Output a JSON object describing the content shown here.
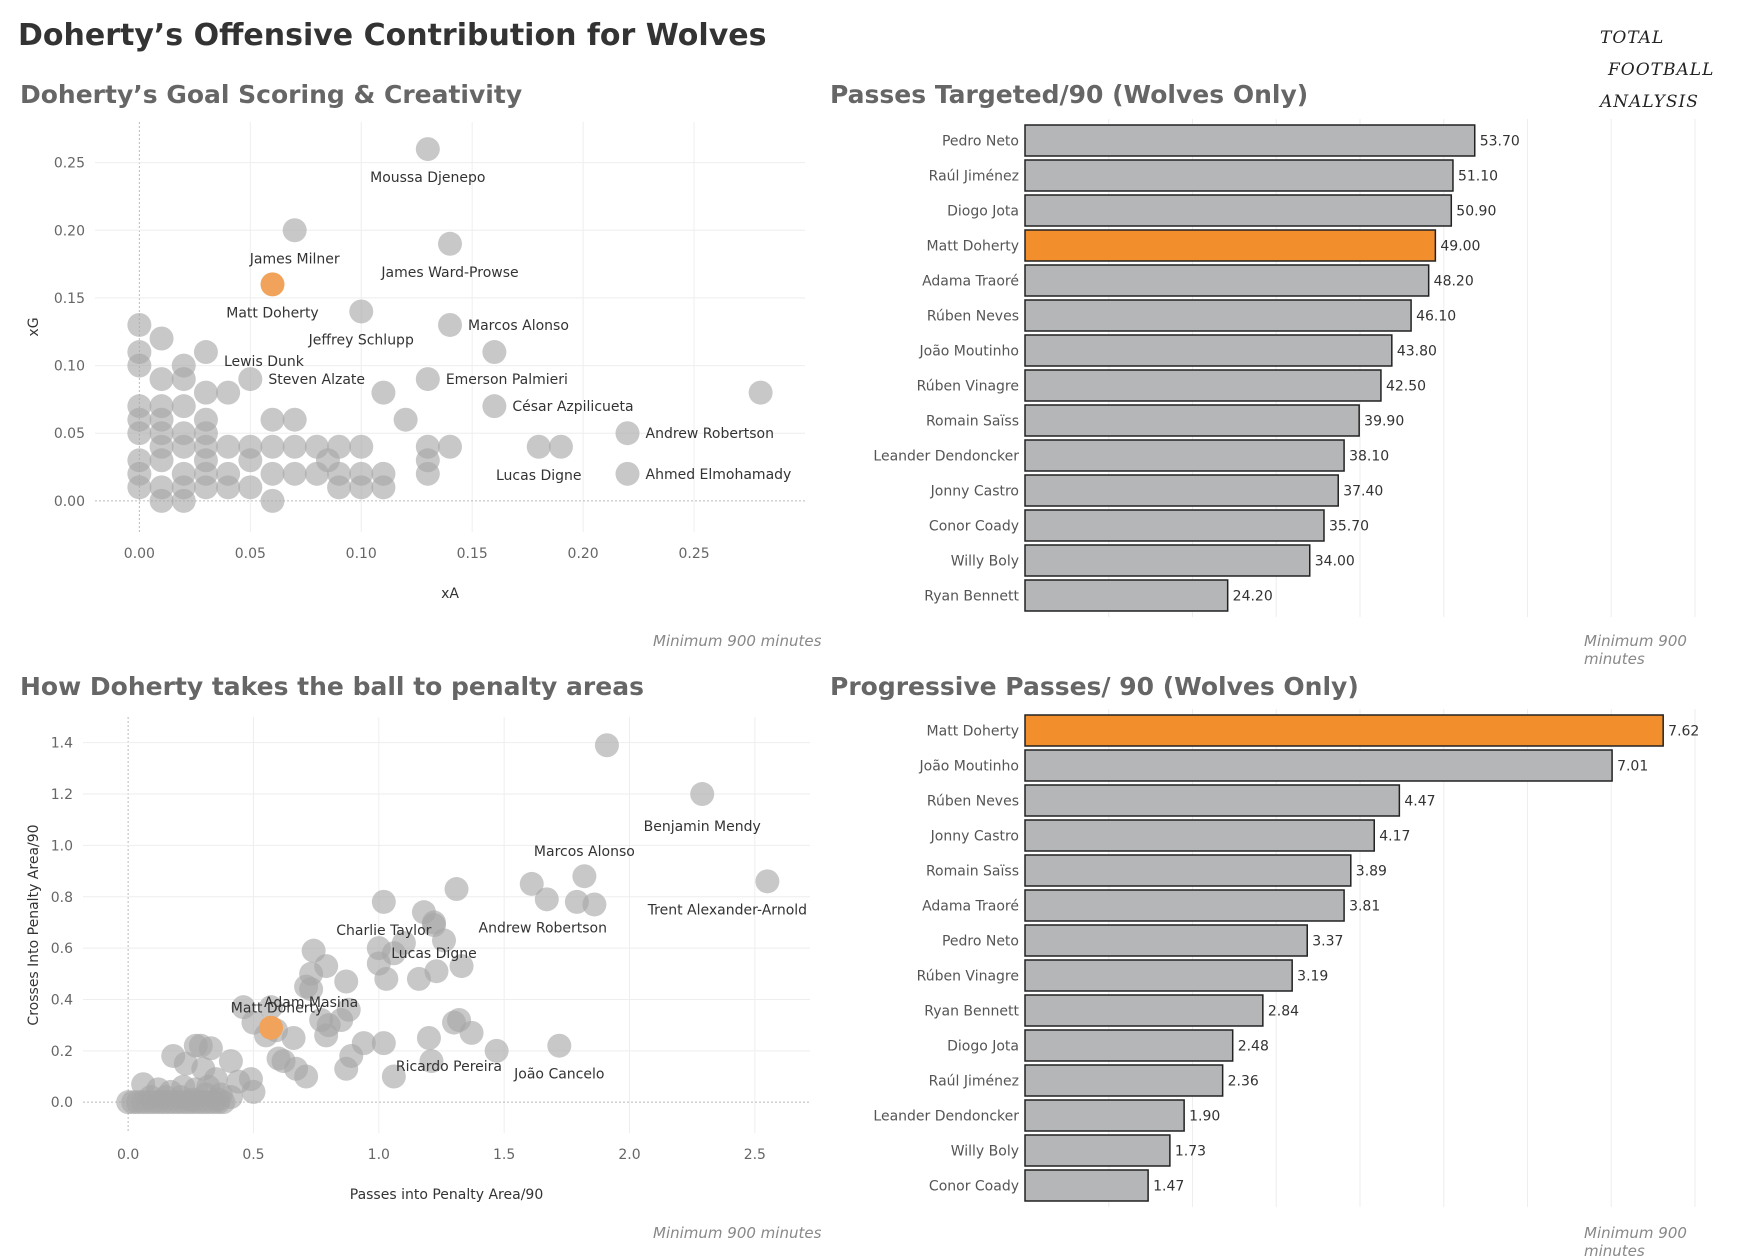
{
  "header": {
    "title": "Doherty’s Offensive Contribution for Wolves"
  },
  "logo": {
    "line1": "TOTAL",
    "line2": "FOOTBALL",
    "line3": "ANALYSIS"
  },
  "colors": {
    "highlight": "#f28e2b",
    "bar": "#b4b6b7",
    "point": "#a6a6a6",
    "highlight_point": "#f1a35b"
  },
  "panels": {
    "top_left": {
      "title": "Doherty’s Goal Scoring & Creativity",
      "footnote": "Minimum 900 minutes"
    },
    "top_right": {
      "title": "Passes Targeted/90 (Wolves Only)",
      "footnote": "Minimum 900 minutes"
    },
    "bottom_left": {
      "title": "How Doherty takes the ball to penalty areas",
      "footnote": "Minimum 900 minutes"
    },
    "bottom_right": {
      "title": "Progressive Passes/ 90 (Wolves Only)",
      "footnote": "Minimum 900 minutes"
    }
  },
  "chart_data": [
    {
      "id": "xg_xa",
      "type": "scatter",
      "title": "Doherty’s Goal Scoring & Creativity",
      "xlabel": "xA",
      "ylabel": "xG",
      "xlim": [
        -0.02,
        0.3
      ],
      "ylim": [
        -0.023,
        0.28
      ],
      "xticks": [
        0.0,
        0.05,
        0.1,
        0.15,
        0.2,
        0.25
      ],
      "yticks": [
        0.0,
        0.05,
        0.1,
        0.15,
        0.2,
        0.25
      ],
      "xtick_labels": [
        "0.00",
        "0.05",
        "0.10",
        "0.15",
        "0.20",
        "0.25"
      ],
      "ytick_labels": [
        "0.00",
        "0.05",
        "0.10",
        "0.15",
        "0.20",
        "0.25"
      ],
      "highlight": {
        "name": "Matt Doherty",
        "x": 0.06,
        "y": 0.16
      },
      "labeled_points": [
        {
          "name": "Moussa Djenepo",
          "x": 0.13,
          "y": 0.26
        },
        {
          "name": "James Milner",
          "x": 0.07,
          "y": 0.2
        },
        {
          "name": "James Ward-Prowse",
          "x": 0.14,
          "y": 0.19
        },
        {
          "name": "Jeffrey Schlupp",
          "x": 0.1,
          "y": 0.14
        },
        {
          "name": "Marcos Alonso",
          "x": 0.14,
          "y": 0.13
        },
        {
          "name": "Lewis Dunk",
          "x": 0.03,
          "y": 0.11
        },
        {
          "name": "Steven Alzate",
          "x": 0.05,
          "y": 0.09
        },
        {
          "name": "Emerson Palmieri",
          "x": 0.13,
          "y": 0.09
        },
        {
          "name": "César Azpilicueta",
          "x": 0.16,
          "y": 0.07
        },
        {
          "name": "Andrew Robertson",
          "x": 0.22,
          "y": 0.05
        },
        {
          "name": "Lucas Digne",
          "x": 0.18,
          "y": 0.04
        },
        {
          "name": "Ahmed Elmohamady",
          "x": 0.22,
          "y": 0.02
        }
      ],
      "other_points": [
        [
          0.16,
          0.11
        ],
        [
          0.28,
          0.08
        ],
        [
          0.19,
          0.04
        ],
        [
          0.11,
          0.08
        ],
        [
          0.12,
          0.06
        ],
        [
          0.13,
          0.04
        ],
        [
          0.13,
          0.03
        ],
        [
          0.13,
          0.02
        ],
        [
          0.14,
          0.04
        ],
        [
          0,
          0.13
        ],
        [
          0,
          0.11
        ],
        [
          0,
          0.1
        ],
        [
          0,
          0.07
        ],
        [
          0,
          0.06
        ],
        [
          0,
          0.05
        ],
        [
          0,
          0.03
        ],
        [
          0,
          0.02
        ],
        [
          0,
          0.01
        ],
        [
          0.01,
          0.12
        ],
        [
          0.01,
          0.09
        ],
        [
          0.01,
          0.07
        ],
        [
          0.01,
          0.06
        ],
        [
          0.01,
          0.05
        ],
        [
          0.01,
          0.04
        ],
        [
          0.01,
          0.03
        ],
        [
          0.01,
          0.01
        ],
        [
          0.01,
          0
        ],
        [
          0.02,
          0.1
        ],
        [
          0.02,
          0.09
        ],
        [
          0.02,
          0.07
        ],
        [
          0.02,
          0.05
        ],
        [
          0.02,
          0.04
        ],
        [
          0.02,
          0.02
        ],
        [
          0.02,
          0.01
        ],
        [
          0.02,
          0
        ],
        [
          0.03,
          0.08
        ],
        [
          0.03,
          0.06
        ],
        [
          0.03,
          0.05
        ],
        [
          0.03,
          0.04
        ],
        [
          0.03,
          0.03
        ],
        [
          0.03,
          0.02
        ],
        [
          0.03,
          0.01
        ],
        [
          0.04,
          0.08
        ],
        [
          0.04,
          0.04
        ],
        [
          0.04,
          0.02
        ],
        [
          0.04,
          0.01
        ],
        [
          0.05,
          0.04
        ],
        [
          0.05,
          0.03
        ],
        [
          0.05,
          0.01
        ],
        [
          0.06,
          0.06
        ],
        [
          0.06,
          0.04
        ],
        [
          0.06,
          0.02
        ],
        [
          0.06,
          0
        ],
        [
          0.07,
          0.06
        ],
        [
          0.07,
          0.04
        ],
        [
          0.07,
          0.02
        ],
        [
          0.08,
          0.04
        ],
        [
          0.08,
          0.02
        ],
        [
          0.085,
          0.03
        ],
        [
          0.09,
          0.04
        ],
        [
          0.09,
          0.02
        ],
        [
          0.09,
          0.01
        ],
        [
          0.1,
          0.04
        ],
        [
          0.1,
          0.02
        ],
        [
          0.1,
          0.01
        ],
        [
          0.11,
          0.02
        ],
        [
          0.11,
          0.01
        ]
      ]
    },
    {
      "id": "passes_targeted",
      "type": "bar",
      "orientation": "horizontal",
      "title": "Passes Targeted/90 (Wolves Only)",
      "xlim": [
        0,
        80
      ],
      "categories": [
        "Pedro Neto",
        "Raúl Jiménez",
        "Diogo Jota",
        "Matt Doherty",
        "Adama Traoré",
        "Rúben Neves",
        "João Moutinho",
        "Rúben Vinagre",
        "Romain Saïss",
        "Leander Dendoncker",
        "Jonny Castro",
        "Conor Coady",
        "Willy Boly",
        "Ryan Bennett"
      ],
      "values": [
        53.7,
        51.1,
        50.9,
        49.0,
        48.2,
        46.1,
        43.8,
        42.5,
        39.9,
        38.1,
        37.4,
        35.7,
        34.0,
        24.2
      ],
      "value_labels": [
        "53.70",
        "51.10",
        "50.90",
        "49.00",
        "48.20",
        "46.10",
        "43.80",
        "42.50",
        "39.90",
        "38.10",
        "37.40",
        "35.70",
        "34.00",
        "24.20"
      ],
      "highlight": "Matt Doherty"
    },
    {
      "id": "penalty_area",
      "type": "scatter",
      "title": "How Doherty takes the ball to penalty areas",
      "xlabel": "Passes into Penalty Area/90",
      "ylabel": "Crosses Into Penalty Area/90",
      "xlim": [
        -0.18,
        2.72
      ],
      "ylim": [
        -0.12,
        1.5
      ],
      "xticks": [
        0.0,
        0.5,
        1.0,
        1.5,
        2.0,
        2.5
      ],
      "yticks": [
        0.0,
        0.2,
        0.4,
        0.6,
        0.8,
        1.0,
        1.2,
        1.4
      ],
      "xtick_labels": [
        "0.0",
        "0.5",
        "1.0",
        "1.5",
        "2.0",
        "2.5"
      ],
      "ytick_labels": [
        "0.0",
        "0.2",
        "0.4",
        "0.6",
        "0.8",
        "1.0",
        "1.2",
        "1.4"
      ],
      "highlight": {
        "name": "Matt Doherty",
        "x": 0.57,
        "y": 0.29
      },
      "labeled_points": [
        {
          "name": "Benjamin Mendy",
          "x": 2.29,
          "y": 1.2
        },
        {
          "name": "Marcos Alonso",
          "x": 1.82,
          "y": 0.88
        },
        {
          "name": "Trent Alexander-Arnold",
          "x": 2.55,
          "y": 0.86
        },
        {
          "name": "Andrew Robertson",
          "x": 1.67,
          "y": 0.79
        },
        {
          "name": "Charlie Taylor",
          "x": 1.02,
          "y": 0.78
        },
        {
          "name": "Lucas Digne",
          "x": 1.22,
          "y": 0.69
        },
        {
          "name": "Adam Masina",
          "x": 0.73,
          "y": 0.5
        },
        {
          "name": "Ricardo Pereira",
          "x": 1.2,
          "y": 0.25
        },
        {
          "name": "João Cancelo",
          "x": 1.72,
          "y": 0.22
        }
      ],
      "other_points": [
        [
          1.91,
          1.39
        ],
        [
          1.61,
          0.85
        ],
        [
          1.79,
          0.78
        ],
        [
          1.86,
          0.77
        ],
        [
          1.31,
          0.83
        ],
        [
          1.18,
          0.74
        ],
        [
          1.22,
          0.7
        ],
        [
          1.26,
          0.63
        ],
        [
          1.0,
          0.6
        ],
        [
          1.06,
          0.58
        ],
        [
          1.1,
          0.62
        ],
        [
          1.33,
          0.53
        ],
        [
          1.23,
          0.51
        ],
        [
          1.16,
          0.48
        ],
        [
          1.03,
          0.48
        ],
        [
          1.0,
          0.54
        ],
        [
          0.74,
          0.59
        ],
        [
          0.79,
          0.53
        ],
        [
          0.71,
          0.45
        ],
        [
          0.73,
          0.44
        ],
        [
          0.87,
          0.47
        ],
        [
          0.46,
          0.37
        ],
        [
          0.57,
          0.37
        ],
        [
          0.77,
          0.32
        ],
        [
          0.8,
          0.3
        ],
        [
          0.88,
          0.36
        ],
        [
          0.85,
          0.32
        ],
        [
          1.3,
          0.31
        ],
        [
          1.32,
          0.32
        ],
        [
          1.37,
          0.27
        ],
        [
          1.47,
          0.2
        ],
        [
          0.5,
          0.31
        ],
        [
          0.55,
          0.26
        ],
        [
          0.59,
          0.28
        ],
        [
          0.66,
          0.25
        ],
        [
          0.79,
          0.26
        ],
        [
          0.94,
          0.23
        ],
        [
          1.02,
          0.23
        ],
        [
          0.6,
          0.17
        ],
        [
          0.62,
          0.16
        ],
        [
          0.67,
          0.13
        ],
        [
          0.71,
          0.1
        ],
        [
          0.89,
          0.18
        ],
        [
          0.87,
          0.13
        ],
        [
          1.06,
          0.1
        ],
        [
          1.21,
          0.16
        ],
        [
          0.18,
          0.18
        ],
        [
          0.27,
          0.22
        ],
        [
          0.29,
          0.22
        ],
        [
          0.33,
          0.21
        ],
        [
          0.41,
          0.16
        ],
        [
          0.23,
          0.15
        ],
        [
          0.3,
          0.13
        ],
        [
          0.35,
          0.09
        ],
        [
          0.44,
          0.08
        ],
        [
          0.49,
          0.09
        ],
        [
          0.5,
          0.04
        ],
        [
          0.06,
          0.07
        ],
        [
          0.12,
          0.05
        ],
        [
          0.17,
          0.04
        ],
        [
          0.22,
          0.06
        ],
        [
          0.27,
          0.05
        ],
        [
          0.32,
          0.06
        ],
        [
          0.37,
          0.03
        ],
        [
          0.41,
          0.02
        ],
        [
          0,
          0
        ],
        [
          0.02,
          0
        ],
        [
          0.04,
          0
        ],
        [
          0.06,
          0
        ],
        [
          0.08,
          0
        ],
        [
          0.1,
          0
        ],
        [
          0.12,
          0
        ],
        [
          0.14,
          0
        ],
        [
          0.16,
          0
        ],
        [
          0.18,
          0
        ],
        [
          0.2,
          0
        ],
        [
          0.22,
          0
        ],
        [
          0.24,
          0
        ],
        [
          0.26,
          0
        ],
        [
          0.28,
          0
        ],
        [
          0.3,
          0
        ],
        [
          0.32,
          0
        ],
        [
          0.34,
          0
        ],
        [
          0.36,
          0
        ],
        [
          0.38,
          0
        ],
        [
          0.09,
          0.02
        ],
        [
          0.15,
          0.02
        ],
        [
          0.21,
          0.02
        ],
        [
          0.26,
          0.01
        ],
        [
          0.31,
          0.03
        ],
        [
          0.36,
          0.01
        ]
      ]
    },
    {
      "id": "progressive_passes",
      "type": "bar",
      "orientation": "horizontal",
      "title": "Progressive Passes/ 90 (Wolves Only)",
      "xlim": [
        0,
        8
      ],
      "categories": [
        "Matt Doherty",
        "João Moutinho",
        "Rúben Neves",
        "Jonny Castro",
        "Romain Saïss",
        "Adama Traoré",
        "Pedro Neto",
        "Rúben Vinagre",
        "Ryan Bennett",
        "Diogo Jota",
        "Raúl Jiménez",
        "Leander Dendoncker",
        "Willy Boly",
        "Conor Coady"
      ],
      "values": [
        7.62,
        7.01,
        4.47,
        4.17,
        3.89,
        3.81,
        3.37,
        3.19,
        2.84,
        2.48,
        2.36,
        1.9,
        1.73,
        1.47
      ],
      "value_labels": [
        "7.62",
        "7.01",
        "4.47",
        "4.17",
        "3.89",
        "3.81",
        "3.37",
        "3.19",
        "2.84",
        "2.48",
        "2.36",
        "1.90",
        "1.73",
        "1.47"
      ],
      "highlight": "Matt Doherty"
    }
  ]
}
